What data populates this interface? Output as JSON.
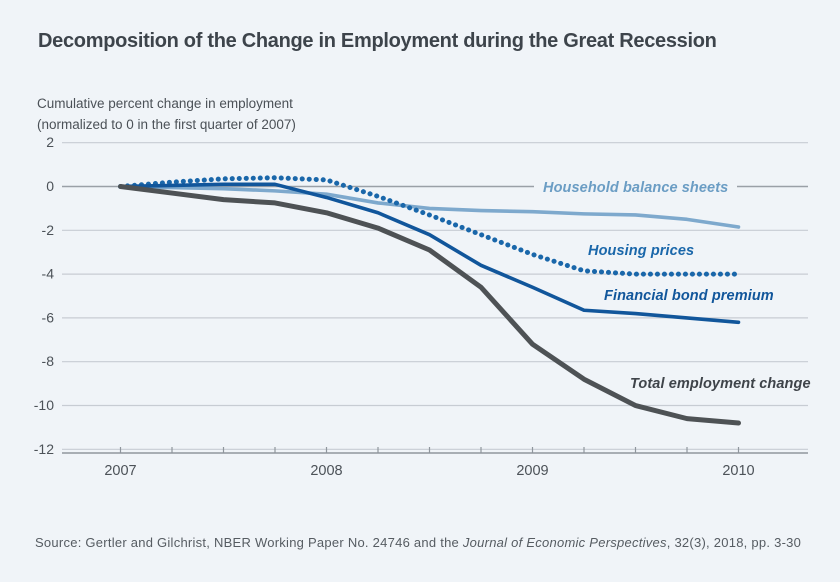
{
  "title": "Decomposition of the Change in Employment during the Great Recession",
  "y_axis_caption": {
    "line1": "Cumulative percent change in employment",
    "line2": "(normalized to 0 in the first quarter of 2007)"
  },
  "source": {
    "prefix": "Source: Gertler and Gilchrist, NBER Working Paper No. 24746 and the ",
    "journal": "Journal of Economic Perspectives",
    "suffix": ", 32(3), 2018, pp. 3-30"
  },
  "colors": {
    "background": "#f0f4f8",
    "title_text": "#3d444b",
    "axis_text": "#4c5258"
  },
  "chart_data": {
    "type": "line",
    "title": "Decomposition of the Change in Employment during the Great Recession",
    "ylabel": "Cumulative percent change in employment (normalized to 0 in the first quarter of 2007)",
    "xlabel": "",
    "x_quarters": [
      "2007Q1",
      "2007Q2",
      "2007Q3",
      "2007Q4",
      "2008Q1",
      "2008Q2",
      "2008Q3",
      "2008Q4",
      "2009Q1",
      "2009Q2",
      "2009Q3",
      "2009Q4",
      "2010Q1"
    ],
    "x_tick_labels": [
      "2007",
      "2008",
      "2009",
      "2010"
    ],
    "y_ticks": [
      2,
      0,
      -2,
      -4,
      -6,
      -8,
      -10,
      -12
    ],
    "ylim": [
      -12,
      2
    ],
    "grid": "horizontal",
    "legend_position": "inline-labels",
    "layout": {
      "grid_color": "#c7ccd3",
      "zero_line_color": "#9aa0a7",
      "axis_color": "#8f969d",
      "tick_color": "#4c5258"
    },
    "series": [
      {
        "id": "household",
        "name": "Household balance sheets",
        "style": "solid",
        "color": "#7ea9cd",
        "label_color": "#6b9dc4",
        "values": [
          0,
          -0.05,
          -0.1,
          -0.2,
          -0.35,
          -0.75,
          -1.0,
          -1.1,
          -1.15,
          -1.25,
          -1.3,
          -1.5,
          -1.85
        ]
      },
      {
        "id": "housing",
        "name": "Housing prices",
        "style": "dotted",
        "color": "#1a67aa",
        "label_color": "#1a67aa",
        "values": [
          0,
          0.2,
          0.35,
          0.4,
          0.3,
          -0.45,
          -1.3,
          -2.2,
          -3.1,
          -3.85,
          -4.0,
          -4.0,
          -4.0
        ]
      },
      {
        "id": "financial",
        "name": "Financial bond premium",
        "style": "solid",
        "color": "#11569b",
        "label_color": "#11569b",
        "values": [
          0,
          0.05,
          0.1,
          0.1,
          -0.5,
          -1.2,
          -2.2,
          -3.6,
          -4.6,
          -5.65,
          -5.8,
          -6.0,
          -6.2
        ]
      },
      {
        "id": "total",
        "name": "Total employment change",
        "style": "solid",
        "color": "#4e5255",
        "label_color": "#3f444a",
        "values": [
          0,
          -0.3,
          -0.6,
          -0.75,
          -1.2,
          -1.9,
          -2.9,
          -4.6,
          -7.2,
          -8.8,
          -10.0,
          -10.6,
          -10.8
        ]
      }
    ]
  }
}
